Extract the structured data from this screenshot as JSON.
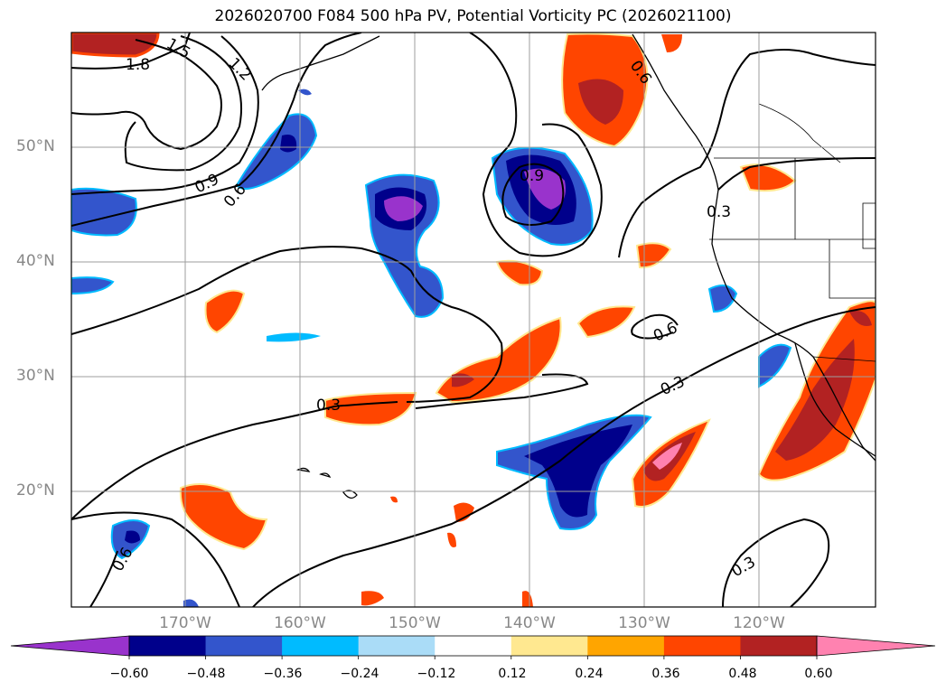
{
  "title": "2026020700 F084 500 hPa PV, Potential Vorticity PC (2026021100)",
  "lon_labels": [
    "170°W",
    "160°W",
    "150°W",
    "140°W",
    "130°W",
    "120°W"
  ],
  "lat_labels": [
    "50°N",
    "40°N",
    "30°N",
    "20°N"
  ],
  "contour_labels": [
    "1.8",
    "1.5",
    "1.2",
    "0.9",
    "0.6",
    "0.9",
    "0.6",
    "0.6",
    "0.3",
    "0.3",
    "0.3",
    "0.6",
    "0.3"
  ],
  "colorbar": {
    "ticks": [
      "−0.60",
      "−0.48",
      "−0.36",
      "−0.24",
      "−0.12",
      "0.12",
      "0.24",
      "0.36",
      "0.48",
      "0.60"
    ],
    "colors": [
      "#9933cc",
      "#00008b",
      "#3355cc",
      "#00bbff",
      "#aadcf7",
      "#ffffff",
      "#ffe890",
      "#ffa500",
      "#ff4500",
      "#b22222",
      "#ff82b0"
    ]
  }
}
